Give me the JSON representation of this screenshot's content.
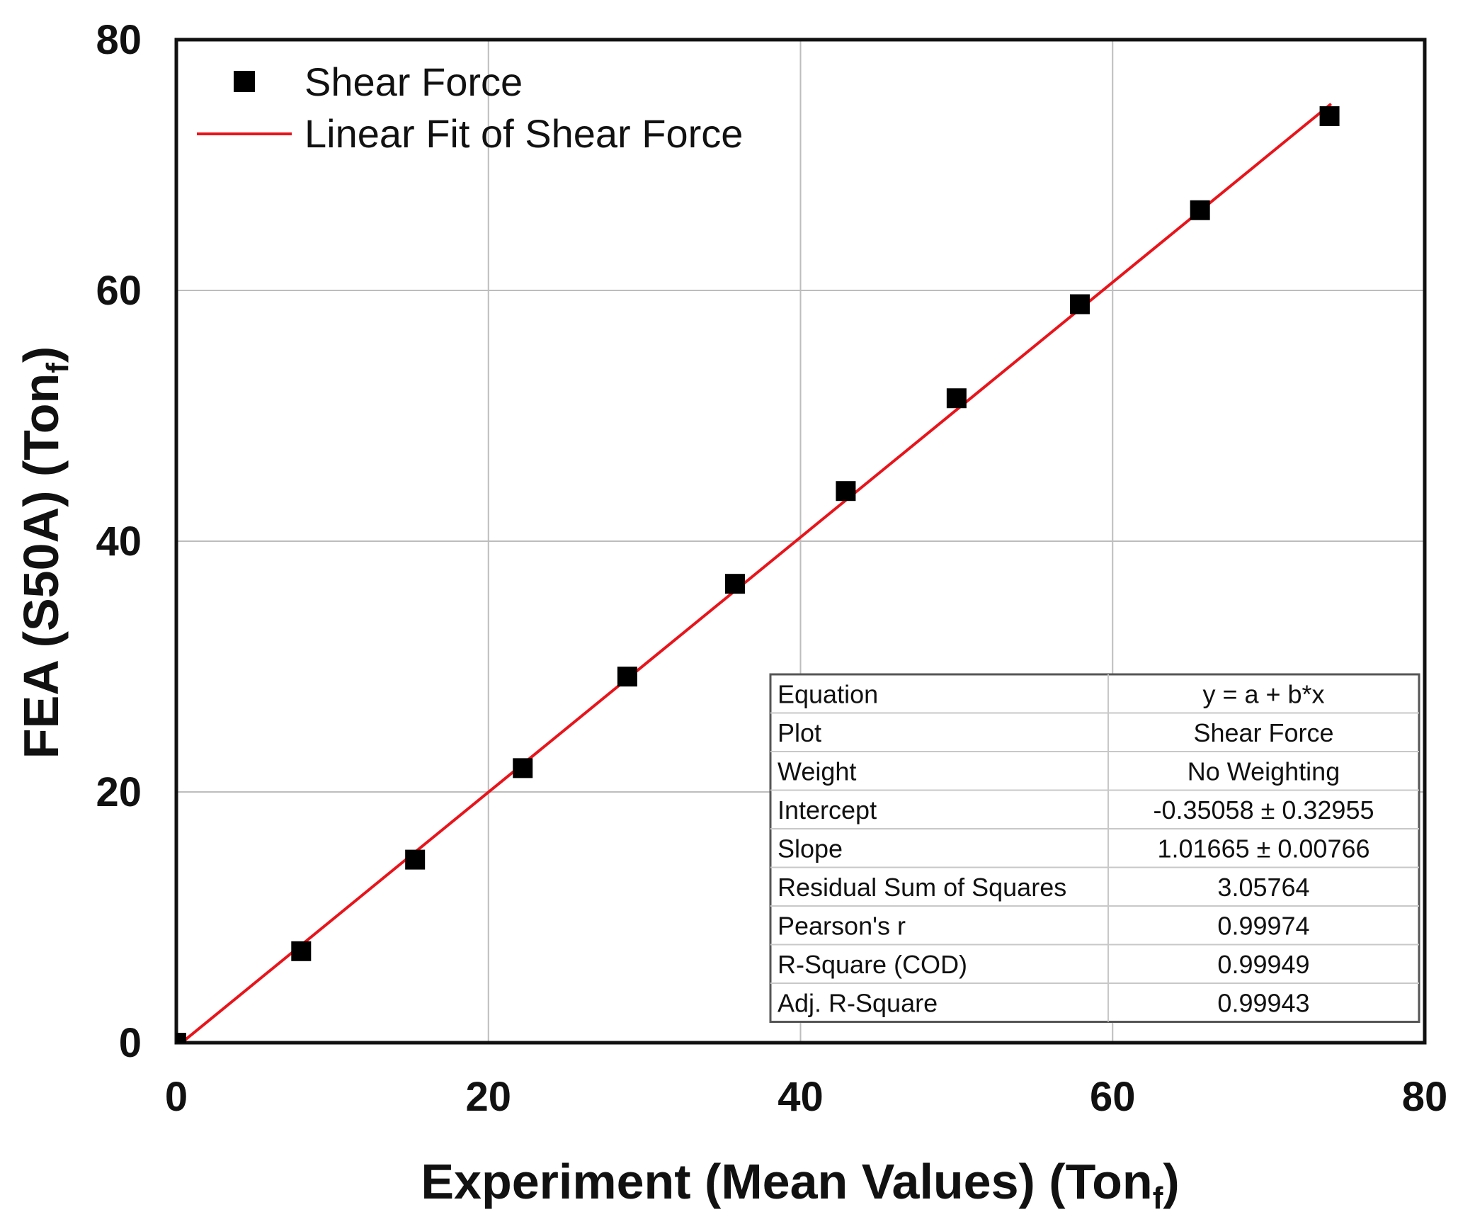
{
  "chart_data": {
    "type": "scatter",
    "x_title": "Experiment (Mean Values) (Ton",
    "x_title_sub": "f",
    "x_title_close": ")",
    "y_title": "FEA (S50A) (Ton",
    "y_title_sub": "f",
    "y_title_close": ")",
    "xlim": [
      0,
      80
    ],
    "ylim": [
      0,
      80
    ],
    "grid": true,
    "x_ticks": [
      "0",
      "20",
      "40",
      "60",
      "80"
    ],
    "y_ticks": [
      "0",
      "20",
      "40",
      "60",
      "80"
    ],
    "legend": {
      "position": "top-left",
      "entries": [
        "Shear Force",
        "Linear Fit of Shear Force"
      ]
    },
    "series": [
      {
        "name": "Shear Force",
        "marker": "square",
        "color": "#000000",
        "x": [
          0,
          8,
          15.3,
          22.2,
          28.9,
          35.8,
          42.9,
          50,
          57.9,
          65.6,
          73.9
        ],
        "y": [
          0,
          7.3,
          14.6,
          21.9,
          29.2,
          36.6,
          44,
          51.4,
          58.9,
          66.4,
          73.9
        ]
      },
      {
        "name": "Linear Fit of Shear Force",
        "type": "line",
        "color": "#e8141b",
        "x": [
          0,
          74
        ],
        "y": [
          -0.35,
          74.88
        ]
      }
    ],
    "stats_table": {
      "rows": [
        [
          "Equation",
          "y = a + b*x"
        ],
        [
          "Plot",
          "Shear Force"
        ],
        [
          "Weight",
          "No Weighting"
        ],
        [
          "Intercept",
          "-0.35058 ± 0.32955"
        ],
        [
          "Slope",
          "1.01665 ± 0.00766"
        ],
        [
          "Residual Sum of Squares",
          "3.05764"
        ],
        [
          "Pearson's r",
          "0.99974"
        ],
        [
          "R-Square (COD)",
          "0.99949"
        ],
        [
          "Adj. R-Square",
          "0.99943"
        ]
      ]
    }
  }
}
